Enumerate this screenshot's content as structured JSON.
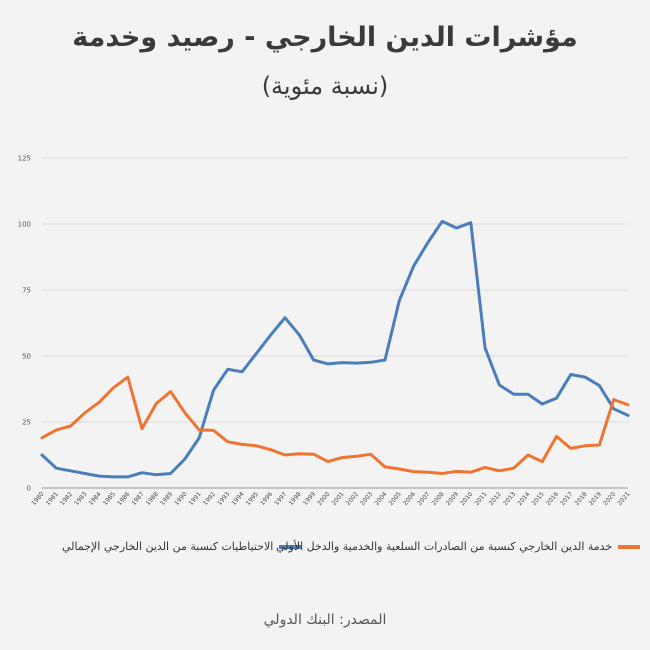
{
  "title": "مؤشرات الدين الخارجي - رصيد وخدمة",
  "subtitle": "(نسبة مئوية)",
  "source": "المصدر: البنك الدولي",
  "chart_data": {
    "type": "line",
    "x": [
      "1980",
      "1981",
      "1982",
      "1983",
      "1984",
      "1985",
      "1986",
      "1987",
      "1988",
      "1989",
      "1990",
      "1991",
      "1992",
      "1993",
      "1994",
      "1995",
      "1996",
      "1997",
      "1998",
      "1999",
      "2000",
      "2001",
      "2002",
      "2003",
      "2004",
      "2005",
      "2006",
      "2007",
      "2008",
      "2009",
      "2010",
      "2011",
      "2012",
      "2013",
      "2014",
      "2015",
      "2016",
      "2017",
      "2018",
      "2019",
      "2020",
      "2021"
    ],
    "ylim": [
      0,
      125
    ],
    "yticks": [
      0,
      25,
      50,
      75,
      100,
      125
    ],
    "grid": true,
    "legend_position": "bottom",
    "series": [
      {
        "name": "الاحتياطيات كنسبة من الدين الخارجي الإجمالي",
        "color": "#4a7ebb",
        "values": [
          12.5,
          7.5,
          6.5,
          5.5,
          4.5,
          4.2,
          4.2,
          5.8,
          5,
          5.5,
          11,
          19,
          37,
          45,
          44,
          51,
          58,
          64.5,
          58,
          48.5,
          47,
          47.5,
          47.3,
          47.6,
          48.5,
          71,
          84,
          93,
          101,
          98.5,
          100.5,
          53,
          39,
          35.5,
          35.5,
          31.8,
          34,
          43,
          42,
          38.8,
          30,
          27.5
        ]
      },
      {
        "name": "خدمة الدين الخارجي كنسبة من الصادرات السلعية والخدمية والدخل الأولي",
        "color": "#f07431",
        "values": [
          19,
          22,
          23.5,
          28.5,
          32.5,
          38,
          42,
          22.5,
          32,
          36.5,
          28.5,
          22,
          21.8,
          17.5,
          16.5,
          16,
          14.5,
          12.5,
          13,
          12.8,
          10,
          11.5,
          12,
          12.8,
          8,
          7.2,
          6.2,
          6,
          5.5,
          6.3,
          6,
          7.8,
          6.5,
          7.5,
          12.5,
          10,
          19.5,
          15,
          16,
          16.3,
          33.5,
          31.5
        ]
      }
    ]
  }
}
